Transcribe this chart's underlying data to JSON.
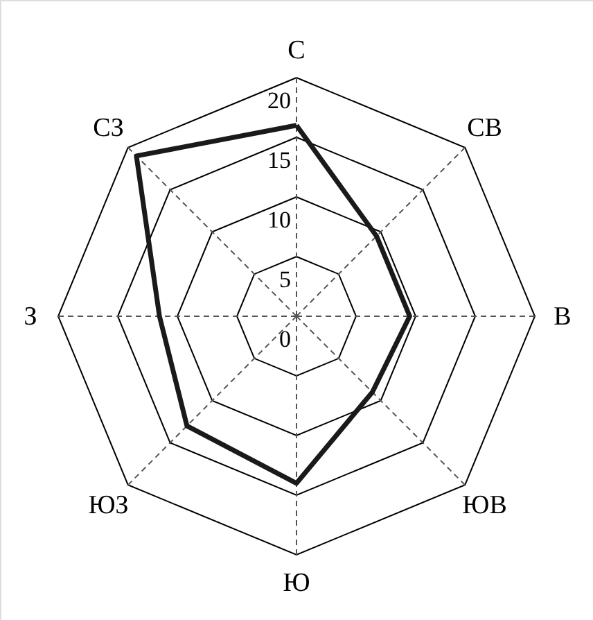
{
  "chart_data": {
    "type": "radar",
    "categories": [
      "С",
      "СВ",
      "В",
      "ЮВ",
      "Ю",
      "ЮЗ",
      "З",
      "СЗ"
    ],
    "series": [
      {
        "color": "#1a1a1a",
        "values": [
          16,
          9.5,
          9.5,
          9,
          14,
          13,
          11.5,
          19
        ]
      }
    ],
    "ylim": [
      0,
      20
    ],
    "yticks": [
      0,
      5,
      10,
      15,
      20
    ],
    "grid": true
  }
}
